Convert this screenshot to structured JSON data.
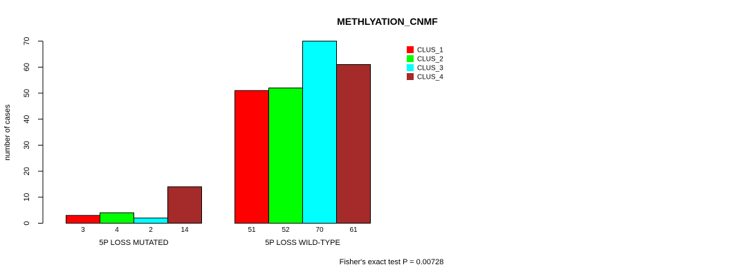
{
  "chart_data": {
    "type": "bar",
    "title": "METHLYATION_CNMF",
    "xlabel": "",
    "ylabel": "number of cases",
    "ylim": [
      0,
      70
    ],
    "yticks": [
      0,
      10,
      20,
      30,
      40,
      50,
      60,
      70
    ],
    "grid": false,
    "legend_position": "top-right",
    "categories": [
      "5P LOSS MUTATED",
      "5P LOSS WILD-TYPE"
    ],
    "series": [
      {
        "name": "CLUS_1",
        "color": "#ff0000",
        "values": [
          3,
          51
        ]
      },
      {
        "name": "CLUS_2",
        "color": "#00ff00",
        "values": [
          4,
          52
        ]
      },
      {
        "name": "CLUS_3",
        "color": "#00ffff",
        "values": [
          2,
          70
        ]
      },
      {
        "name": "CLUS_4",
        "color": "#a52a2a",
        "values": [
          14,
          61
        ]
      }
    ],
    "footnote": "Fisher's exact test P = 0.00728"
  }
}
